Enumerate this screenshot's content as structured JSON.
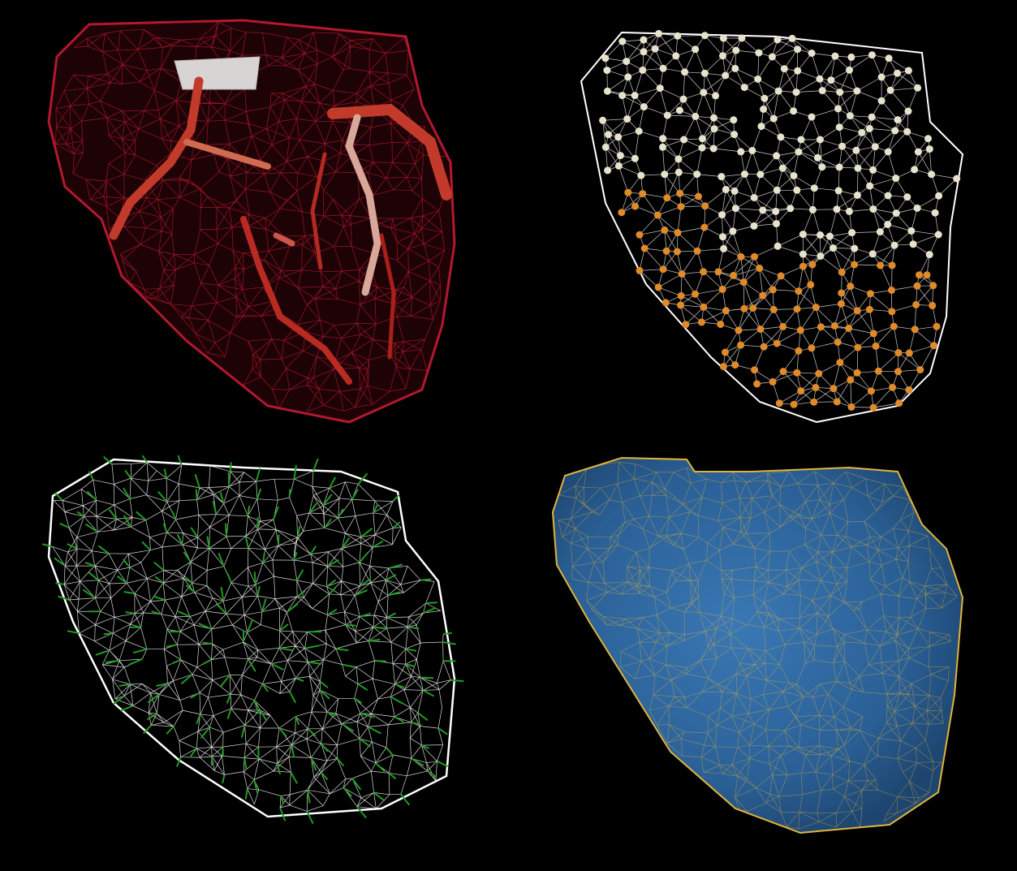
{
  "figure": {
    "panels": [
      {
        "id": "tl",
        "subject": "wireframe-heart-with-coronary-arteries",
        "mesh_color": "#b3182f",
        "vessel_color": "#c23a2a"
      },
      {
        "id": "tr",
        "subject": "ventricle-mesh-with-node-spheres",
        "mesh_color": "#ffffff",
        "node_colors": [
          "#e8e2cc",
          "#e08a2a"
        ]
      },
      {
        "id": "bl",
        "subject": "wireframe-heart-with-normal-vectors",
        "mesh_color": "#ffffff",
        "vector_color": "#1f9d1f"
      },
      {
        "id": "br",
        "subject": "surface-heart-with-wireframe-overlay",
        "surface_color": "#2a5f95",
        "mesh_color": "#e0b53a"
      }
    ]
  }
}
